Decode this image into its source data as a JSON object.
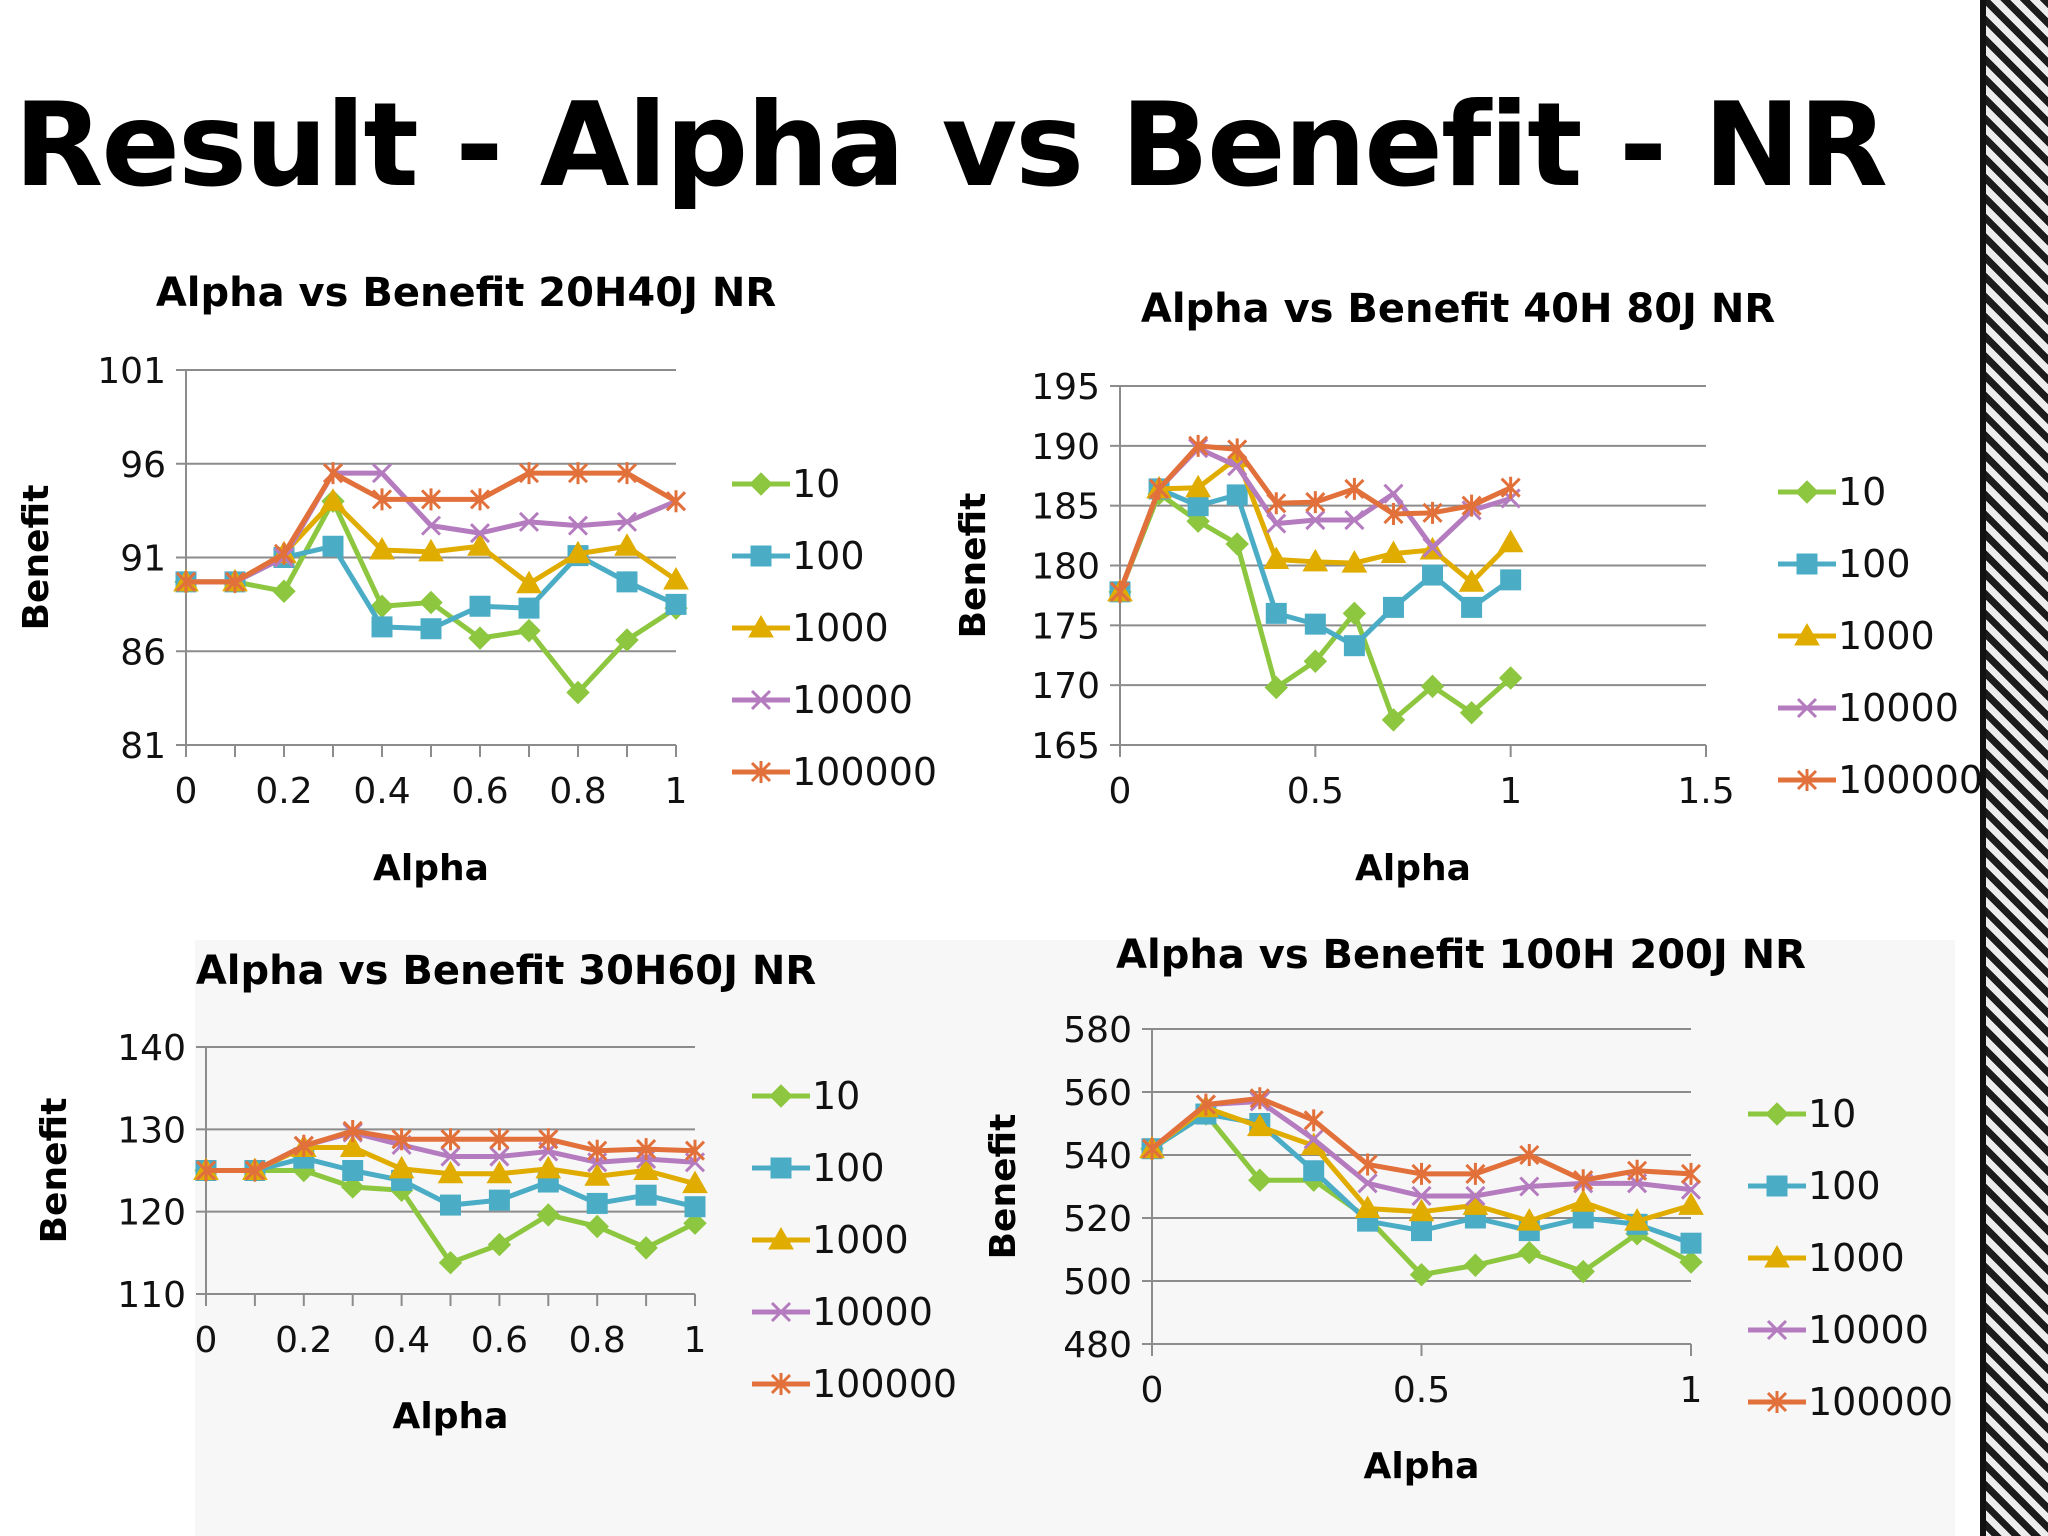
{
  "slide_title": "Result - Alpha vs Benefit - NR",
  "series_colors": {
    "10": "#8dc63f",
    "100": "#4bacc6",
    "1000": "#e0ac00",
    "10000": "#b57bbf",
    "100000": "#e2703a"
  },
  "series_markers": {
    "10": "diamond",
    "100": "square",
    "1000": "triangle",
    "10000": "x",
    "100000": "asterisk"
  },
  "chart_data": [
    {
      "type": "line",
      "title": "Alpha vs Benefit 20H40J NR",
      "xlabel": "Alpha",
      "ylabel": "Benefit",
      "x_ticks": [
        "0",
        "0.2",
        "0.4",
        "0.6",
        "0.8",
        "1"
      ],
      "y_ticks": [
        "81",
        "86",
        "91",
        "96",
        "101"
      ],
      "xlim": [
        0,
        1
      ],
      "ylim": [
        81,
        101
      ],
      "x_minor_step": 0.1,
      "grid": true,
      "legend": "right",
      "x": [
        0,
        0.1,
        0.2,
        0.3,
        0.4,
        0.5,
        0.6,
        0.7,
        0.8,
        0.9,
        1.0
      ],
      "series": [
        {
          "name": "10",
          "values": [
            89.7,
            89.7,
            89.2,
            94.0,
            88.4,
            88.6,
            86.7,
            87.1,
            83.8,
            86.6,
            88.3
          ]
        },
        {
          "name": "100",
          "values": [
            89.7,
            89.7,
            91.0,
            91.6,
            87.3,
            87.2,
            88.4,
            88.3,
            91.1,
            89.7,
            88.5
          ]
        },
        {
          "name": "1000",
          "values": [
            89.7,
            89.7,
            91.2,
            94.0,
            91.4,
            91.3,
            91.6,
            89.6,
            91.2,
            91.6,
            89.8
          ]
        },
        {
          "name": "10000",
          "values": [
            89.7,
            89.7,
            91.0,
            95.5,
            95.5,
            92.7,
            92.3,
            92.9,
            92.7,
            92.9,
            94.0
          ]
        },
        {
          "name": "100000",
          "values": [
            89.7,
            89.7,
            91.2,
            95.5,
            94.1,
            94.1,
            94.1,
            95.5,
            95.5,
            95.5,
            94.0
          ]
        }
      ]
    },
    {
      "type": "line",
      "title": "Alpha vs Benefit 40H 80J NR",
      "xlabel": "Alpha",
      "ylabel": "Benefit",
      "x_ticks": [
        "0",
        "0.5",
        "1",
        "1.5"
      ],
      "y_ticks": [
        "165",
        "170",
        "175",
        "180",
        "185",
        "190",
        "195"
      ],
      "xlim": [
        0,
        1.5
      ],
      "ylim": [
        165,
        195
      ],
      "x_minor_step": 0.5,
      "grid": true,
      "legend": "right",
      "x": [
        0,
        0.1,
        0.2,
        0.3,
        0.4,
        0.5,
        0.6,
        0.7,
        0.8,
        0.9,
        1.0
      ],
      "series": [
        {
          "name": "10",
          "values": [
            177.8,
            186.0,
            183.7,
            181.8,
            169.8,
            172.0,
            176.0,
            167.1,
            169.9,
            167.7,
            170.6
          ]
        },
        {
          "name": "100",
          "values": [
            177.8,
            186.4,
            185.0,
            185.9,
            176.0,
            175.1,
            173.3,
            176.5,
            179.2,
            176.5,
            178.8
          ]
        },
        {
          "name": "1000",
          "values": [
            177.8,
            186.4,
            186.5,
            189.0,
            180.5,
            180.3,
            180.2,
            181.0,
            181.3,
            178.6,
            181.9
          ]
        },
        {
          "name": "10000",
          "values": [
            177.8,
            186.4,
            189.8,
            188.3,
            183.5,
            183.8,
            183.8,
            186.0,
            181.5,
            184.6,
            185.6
          ]
        },
        {
          "name": "100000",
          "values": [
            177.8,
            186.4,
            190.0,
            189.7,
            185.2,
            185.3,
            186.4,
            184.3,
            184.4,
            185.0,
            186.5
          ]
        }
      ]
    },
    {
      "type": "line",
      "title": "Alpha vs Benefit 30H60J NR",
      "xlabel": "Alpha",
      "ylabel": "Benefit",
      "x_ticks": [
        "0",
        "0.2",
        "0.4",
        "0.6",
        "0.8",
        "1"
      ],
      "y_ticks": [
        "110",
        "120",
        "130",
        "140"
      ],
      "xlim": [
        0,
        1
      ],
      "ylim": [
        110,
        140
      ],
      "x_minor_step": 0.1,
      "grid": true,
      "legend": "right",
      "x": [
        0,
        0.1,
        0.2,
        0.3,
        0.4,
        0.5,
        0.6,
        0.7,
        0.8,
        0.9,
        1.0
      ],
      "series": [
        {
          "name": "10",
          "values": [
            125.0,
            125.0,
            125.0,
            123.0,
            122.6,
            113.8,
            116.0,
            119.6,
            118.2,
            115.6,
            118.6
          ]
        },
        {
          "name": "100",
          "values": [
            125.0,
            125.0,
            126.5,
            125.0,
            123.8,
            120.8,
            121.4,
            123.6,
            121.0,
            122.0,
            120.6
          ]
        },
        {
          "name": "1000",
          "values": [
            125.0,
            125.0,
            127.8,
            127.8,
            125.2,
            124.6,
            124.6,
            125.2,
            124.3,
            125.0,
            123.4
          ]
        },
        {
          "name": "10000",
          "values": [
            125.0,
            125.0,
            128.0,
            129.6,
            128.1,
            126.7,
            126.7,
            127.3,
            126.0,
            126.4,
            126.0
          ]
        },
        {
          "name": "100000",
          "values": [
            125.0,
            125.0,
            128.0,
            129.8,
            128.8,
            128.8,
            128.8,
            128.8,
            127.4,
            127.6,
            127.4
          ]
        }
      ]
    },
    {
      "type": "line",
      "title": "Alpha vs Benefit 100H 200J NR",
      "xlabel": "Alpha",
      "ylabel": "Benefit",
      "x_ticks": [
        "0",
        "0.5",
        "1"
      ],
      "y_ticks": [
        "480",
        "500",
        "520",
        "540",
        "560",
        "580"
      ],
      "xlim": [
        0,
        1
      ],
      "ylim": [
        480,
        580
      ],
      "x_minor_step": 0.5,
      "grid": true,
      "legend": "right",
      "x": [
        0,
        0.1,
        0.2,
        0.3,
        0.4,
        0.5,
        0.6,
        0.7,
        0.8,
        0.9,
        1.0
      ],
      "series": [
        {
          "name": "10",
          "values": [
            542,
            553,
            532,
            532,
            520,
            502,
            505,
            509,
            503,
            515,
            506
          ]
        },
        {
          "name": "100",
          "values": [
            542,
            553,
            550,
            535,
            519,
            516,
            520,
            516,
            520,
            518,
            512
          ]
        },
        {
          "name": "1000",
          "values": [
            542,
            555,
            549,
            543,
            523,
            522,
            524,
            519,
            525,
            519,
            524
          ]
        },
        {
          "name": "10000",
          "values": [
            542,
            556,
            557,
            545,
            531,
            527,
            527,
            530,
            531,
            531,
            529
          ]
        },
        {
          "name": "100000",
          "values": [
            542,
            556,
            558,
            551,
            537,
            534,
            534,
            540,
            532,
            535,
            534
          ]
        }
      ]
    }
  ]
}
